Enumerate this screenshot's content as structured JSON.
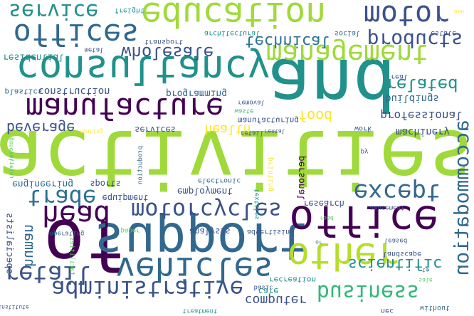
{
  "colors": {
    "background": "#ffffff",
    "palette": [
      "#440154",
      "#3b528b",
      "#21918c",
      "#5ec962",
      "#9fda3a",
      "#fde725",
      "#31688e",
      "#35b779"
    ]
  },
  "words": [
    {
      "text": "activities",
      "color": "#9fda3a"
    },
    {
      "text": "and",
      "color": "#21918c"
    },
    {
      "text": "of",
      "color": "#440154"
    },
    {
      "text": "support",
      "color": "#31688e"
    },
    {
      "text": "consultancy",
      "color": "#21918c"
    },
    {
      "text": "education",
      "color": "#9fda3a"
    },
    {
      "text": "office",
      "color": "#440154"
    },
    {
      "text": "other",
      "color": "#b5de2b"
    },
    {
      "text": "vehicles",
      "color": "#31688e"
    },
    {
      "text": "administrative",
      "color": "#3b528b"
    },
    {
      "text": "manufacture",
      "color": "#440154"
    },
    {
      "text": "management",
      "color": "#9fda3a"
    },
    {
      "text": "offices",
      "color": "#31688e"
    },
    {
      "text": "service",
      "color": "#21918c"
    },
    {
      "text": "motor",
      "color": "#3b528b"
    },
    {
      "text": "motorcycles",
      "color": "#3b528b"
    },
    {
      "text": "trade",
      "color": "#2c728e"
    },
    {
      "text": "head",
      "color": "#440154"
    },
    {
      "text": "except",
      "color": "#31688e"
    },
    {
      "text": "retail",
      "color": "#3b528b"
    },
    {
      "text": "business",
      "color": "#35b779"
    },
    {
      "text": "technical",
      "color": "#2c728e"
    },
    {
      "text": "products",
      "color": "#3b528b"
    },
    {
      "text": "wholesale",
      "color": "#3b528b"
    },
    {
      "text": "related",
      "color": "#21918c"
    },
    {
      "text": "accommodation",
      "color": "#31688e"
    },
    {
      "text": "beverage",
      "color": "#3b528b"
    },
    {
      "text": "food",
      "color": "#fde725"
    },
    {
      "text": "health",
      "color": "#fde725"
    },
    {
      "text": "scientific",
      "color": "#21918c"
    },
    {
      "text": "human",
      "color": "#31688e"
    },
    {
      "text": "computer",
      "color": "#3b528b"
    },
    {
      "text": "professional",
      "color": "#3b528b"
    },
    {
      "text": "construction",
      "color": "#3b528b"
    },
    {
      "text": "programming",
      "color": "#31688e"
    },
    {
      "text": "residential",
      "color": "#21918c"
    },
    {
      "text": "buildings",
      "color": "#31688e"
    },
    {
      "text": "machinery",
      "color": "#3b528b"
    },
    {
      "text": "services",
      "color": "#3b528b"
    },
    {
      "text": "employment",
      "color": "#3b528b"
    },
    {
      "text": "analysis",
      "color": "#3b528b"
    },
    {
      "text": "engineering",
      "color": "#31688e"
    },
    {
      "text": "sports",
      "color": "#3b528b"
    },
    {
      "text": "equipment",
      "color": "#3b528b"
    },
    {
      "text": "specialists",
      "color": "#3b528b"
    },
    {
      "text": "research",
      "color": "#3b528b"
    },
    {
      "text": "personal",
      "color": "#440154"
    },
    {
      "text": "manufacturing",
      "color": "#3b528b"
    },
    {
      "text": "recreation",
      "color": "#21918c"
    },
    {
      "text": "care",
      "color": "#21918c"
    },
    {
      "text": "transport",
      "color": "#3b528b"
    },
    {
      "text": "architectural",
      "color": "#21918c"
    },
    {
      "text": "metal",
      "color": "#3b528b"
    },
    {
      "text": "freight",
      "color": "#21918c"
    },
    {
      "text": "plastics",
      "color": "#31688e"
    },
    {
      "text": "removal",
      "color": "#3b528b"
    },
    {
      "text": "waste",
      "color": "#35b779"
    },
    {
      "text": "social",
      "color": "#31688e"
    },
    {
      "text": "estate",
      "color": "#3b528b"
    },
    {
      "text": "real",
      "color": "#3b528b"
    },
    {
      "text": "work",
      "color": "#3b528b"
    },
    {
      "text": "advertising",
      "color": "#3b528b"
    },
    {
      "text": "basic",
      "color": "#3b528b"
    },
    {
      "text": "paper",
      "color": "#5ec962"
    },
    {
      "text": "operating",
      "color": "#31688e"
    },
    {
      "text": "landscape",
      "color": "#3b528b"
    },
    {
      "text": "leased",
      "color": "#3b528b"
    },
    {
      "text": "without",
      "color": "#31688e"
    },
    {
      "text": "nec",
      "color": "#3b528b"
    },
    {
      "text": "treatment",
      "color": "#21918c"
    },
    {
      "text": "facilities",
      "color": "#5ec962"
    },
    {
      "text": "electronic",
      "color": "#31688e"
    },
    {
      "text": "printing",
      "color": "#fde725"
    },
    {
      "text": "production",
      "color": "#31688e"
    },
    {
      "text": "textiles",
      "color": "#21918c"
    },
    {
      "text": "retail",
      "color": "#3b528b"
    },
    {
      "text": "amusement",
      "color": "#3b528b"
    },
    {
      "text": "road",
      "color": "#5ec962"
    },
    {
      "text": "py",
      "color": "#3b528b"
    },
    {
      "text": "own",
      "color": "#fde725"
    },
    {
      "text": "to",
      "color": "#31688e"
    },
    {
      "text": "or",
      "color": "#31688e"
    },
    {
      "text": "sale",
      "color": "#5ec962"
    },
    {
      "text": "rental",
      "color": "#3b528b"
    },
    {
      "text": "institute",
      "color": "#3b528b"
    },
    {
      "text": "renting",
      "color": "#fde725"
    },
    {
      "text": "general",
      "color": "#5ec962"
    },
    {
      "text": "retailer",
      "color": "#5ec962"
    }
  ]
}
